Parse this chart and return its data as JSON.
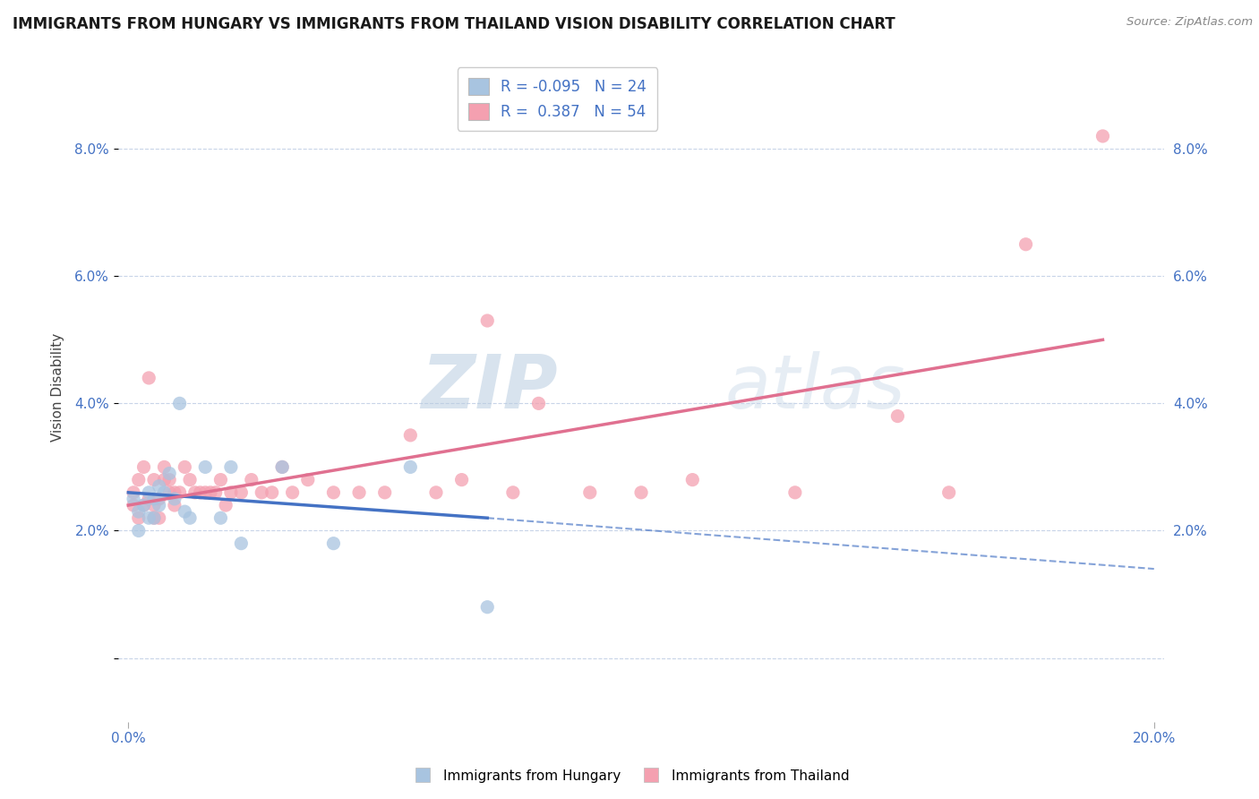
{
  "title": "IMMIGRANTS FROM HUNGARY VS IMMIGRANTS FROM THAILAND VISION DISABILITY CORRELATION CHART",
  "source_text": "Source: ZipAtlas.com",
  "ylabel": "Vision Disability",
  "xlim": [
    -0.002,
    0.202
  ],
  "ylim": [
    -0.01,
    0.095
  ],
  "yticks": [
    0.0,
    0.02,
    0.04,
    0.06,
    0.08
  ],
  "xticks": [
    0.0,
    0.2
  ],
  "xticklabels": [
    "0.0%",
    "20.0%"
  ],
  "yticklabels": [
    "",
    "2.0%",
    "4.0%",
    "6.0%",
    "8.0%"
  ],
  "hungary_color": "#a8c4e0",
  "thailand_color": "#f4a0b0",
  "hungary_line_color": "#4472c4",
  "thailand_line_color": "#e07090",
  "hungary_R": -0.095,
  "hungary_N": 24,
  "thailand_R": 0.387,
  "thailand_N": 54,
  "legend_hungary_label": "Immigrants from Hungary",
  "legend_thailand_label": "Immigrants from Thailand",
  "watermark_zip": "ZIP",
  "watermark_atlas": "atlas",
  "background_color": "#ffffff",
  "grid_color": "#c8d4e8",
  "hungary_x": [
    0.001,
    0.002,
    0.002,
    0.003,
    0.004,
    0.004,
    0.005,
    0.005,
    0.006,
    0.006,
    0.007,
    0.008,
    0.009,
    0.01,
    0.011,
    0.012,
    0.015,
    0.018,
    0.02,
    0.022,
    0.03,
    0.04,
    0.055,
    0.07
  ],
  "hungary_y": [
    0.025,
    0.023,
    0.02,
    0.024,
    0.026,
    0.022,
    0.025,
    0.022,
    0.027,
    0.024,
    0.026,
    0.029,
    0.025,
    0.04,
    0.023,
    0.022,
    0.03,
    0.022,
    0.03,
    0.018,
    0.03,
    0.018,
    0.03,
    0.008
  ],
  "thailand_x": [
    0.001,
    0.001,
    0.002,
    0.002,
    0.003,
    0.003,
    0.004,
    0.004,
    0.005,
    0.005,
    0.005,
    0.006,
    0.006,
    0.007,
    0.007,
    0.008,
    0.008,
    0.009,
    0.009,
    0.01,
    0.011,
    0.012,
    0.013,
    0.014,
    0.015,
    0.016,
    0.017,
    0.018,
    0.019,
    0.02,
    0.022,
    0.024,
    0.026,
    0.028,
    0.03,
    0.032,
    0.035,
    0.04,
    0.045,
    0.05,
    0.055,
    0.06,
    0.065,
    0.07,
    0.075,
    0.08,
    0.09,
    0.1,
    0.11,
    0.13,
    0.15,
    0.16,
    0.175,
    0.19
  ],
  "thailand_y": [
    0.026,
    0.024,
    0.028,
    0.022,
    0.03,
    0.024,
    0.025,
    0.044,
    0.024,
    0.028,
    0.022,
    0.025,
    0.022,
    0.028,
    0.03,
    0.026,
    0.028,
    0.026,
    0.024,
    0.026,
    0.03,
    0.028,
    0.026,
    0.026,
    0.026,
    0.026,
    0.026,
    0.028,
    0.024,
    0.026,
    0.026,
    0.028,
    0.026,
    0.026,
    0.03,
    0.026,
    0.028,
    0.026,
    0.026,
    0.026,
    0.035,
    0.026,
    0.028,
    0.053,
    0.026,
    0.04,
    0.026,
    0.026,
    0.028,
    0.026,
    0.038,
    0.026,
    0.065,
    0.082
  ],
  "hungary_trend_x0": 0.0,
  "hungary_trend_y0": 0.026,
  "hungary_trend_x1": 0.07,
  "hungary_trend_y1": 0.022,
  "hungary_trend_x2": 0.2,
  "hungary_trend_y2": 0.014,
  "thailand_trend_x0": 0.0,
  "thailand_trend_y0": 0.024,
  "thailand_trend_x1": 0.19,
  "thailand_trend_y1": 0.05
}
